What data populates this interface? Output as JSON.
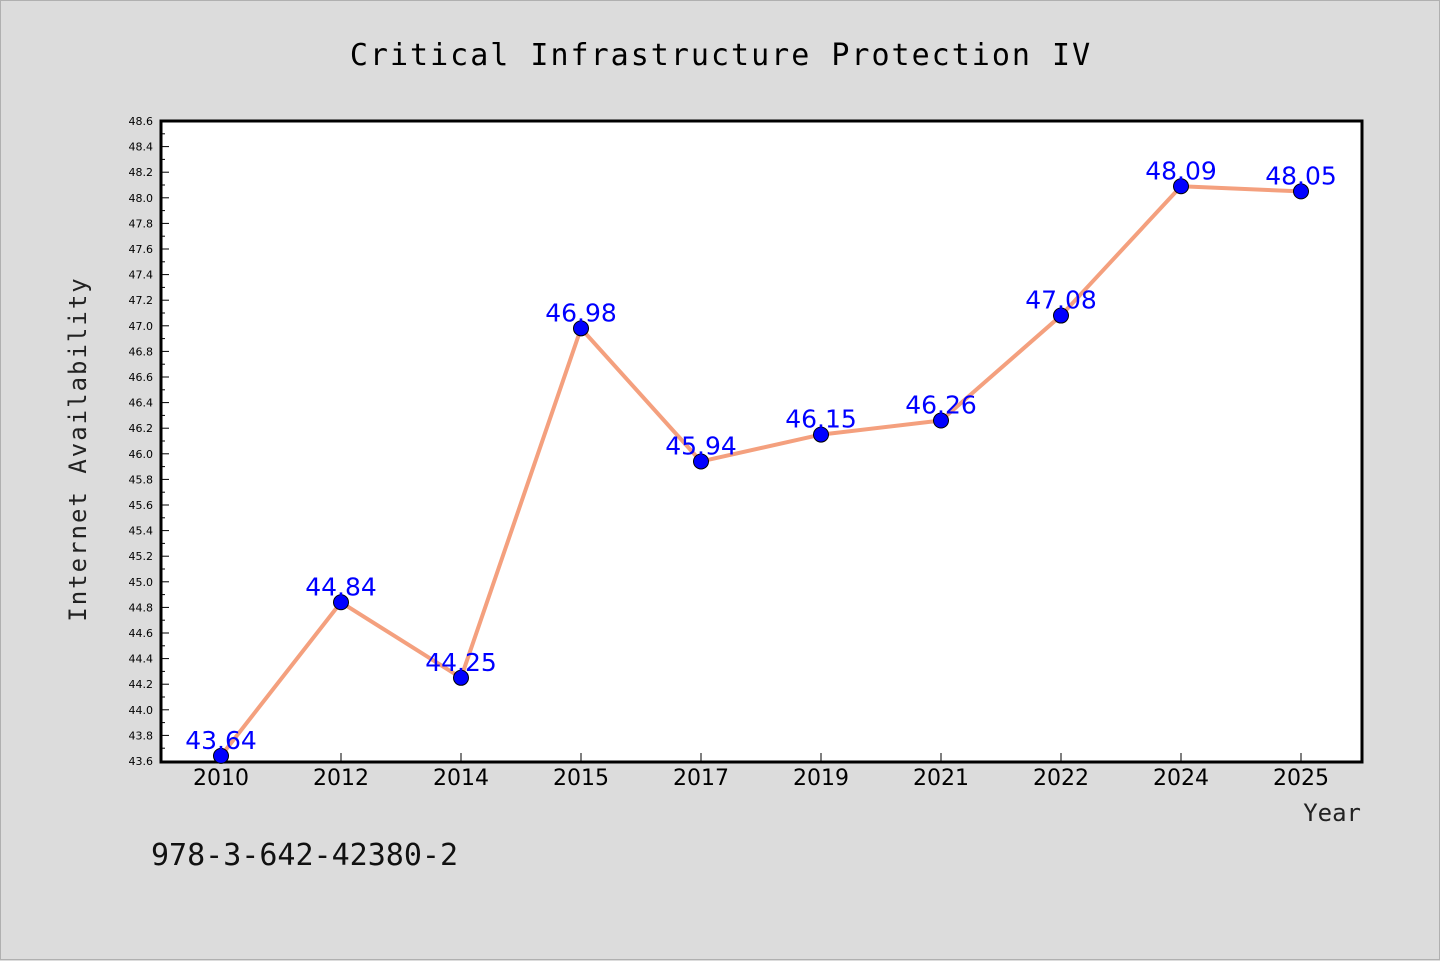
{
  "chart_data": {
    "type": "line",
    "title": "Critical Infrastructure Protection IV",
    "xlabel": "Year",
    "ylabel": "Internet Availability",
    "categories": [
      "2010",
      "2012",
      "2014",
      "2015",
      "2017",
      "2019",
      "2021",
      "2022",
      "2024",
      "2025"
    ],
    "series": [
      {
        "values": [
          43.64,
          44.84,
          44.25,
          46.98,
          45.94,
          46.15,
          46.26,
          47.08,
          48.09,
          48.05
        ],
        "labels": [
          "43.64",
          "44.84",
          "44.25",
          "46.98",
          "45.94",
          "46.15",
          "46.26",
          "47.08",
          "48.09",
          "48.05"
        ],
        "line_color": "#f4a07e",
        "marker_color": "#0000ff",
        "label_color": "#0000ff"
      }
    ],
    "ylim": [
      43.6,
      48.6
    ],
    "y_ticks": [
      "43.6",
      "43.8",
      "44.0",
      "44.2",
      "44.4",
      "44.6",
      "44.8",
      "45.0",
      "45.2",
      "45.4",
      "45.6",
      "45.8",
      "46.0",
      "46.2",
      "46.4",
      "46.6",
      "46.8",
      "47.0",
      "47.2",
      "47.4",
      "47.6",
      "47.8",
      "48.0",
      "48.2",
      "48.4",
      "48.6"
    ],
    "grid": false,
    "legend": "none"
  },
  "footer_text": "978-3-642-42380-2"
}
